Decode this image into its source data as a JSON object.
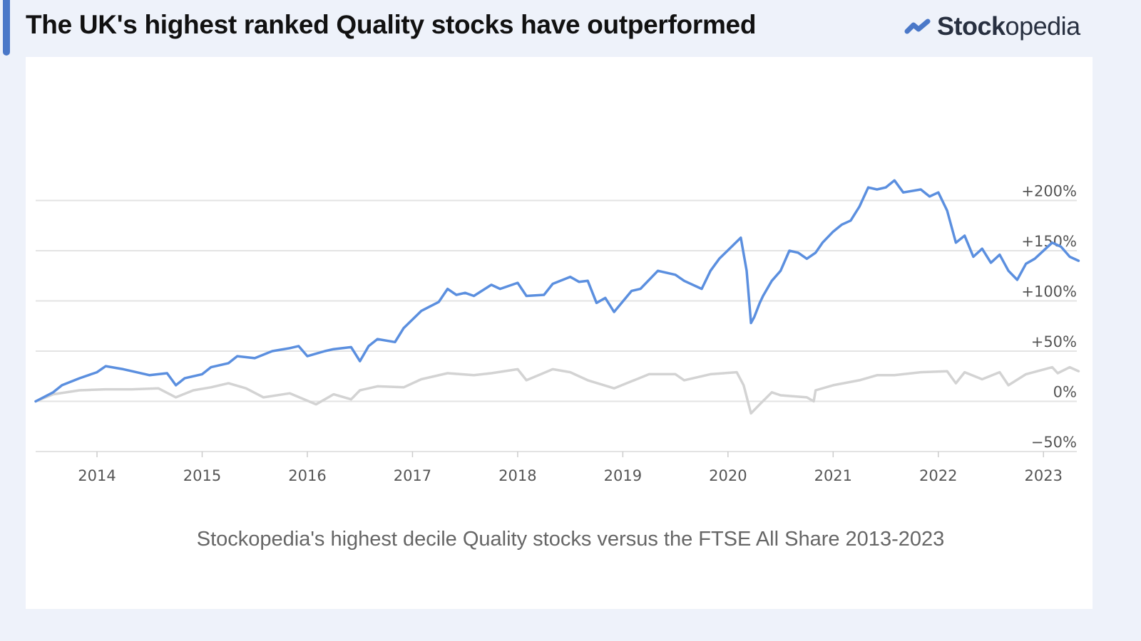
{
  "header": {
    "title": "The UK's highest ranked Quality stocks have outperformed",
    "logo": {
      "text_bold": "Stock",
      "text_light": "opedia",
      "icon": "trend-up-icon",
      "color": "#4a78c8"
    }
  },
  "chart_data": {
    "type": "line",
    "title": "",
    "caption": "Stockopedia's highest decile Quality stocks versus the FTSE All Share 2013-2023",
    "xlabel": "",
    "ylabel": "",
    "xlim": [
      "2013-06",
      "2023-05"
    ],
    "ylim": [
      -50,
      250
    ],
    "grid": true,
    "legend": "none",
    "y_ticks": [
      {
        "value": -50,
        "label": "−50%"
      },
      {
        "value": 0,
        "label": "0%"
      },
      {
        "value": 50,
        "label": "+50%"
      },
      {
        "value": 100,
        "label": "+100%"
      },
      {
        "value": 150,
        "label": "+150%"
      },
      {
        "value": 200,
        "label": "+200%"
      }
    ],
    "x_ticks": [
      "2014",
      "2015",
      "2016",
      "2017",
      "2018",
      "2019",
      "2020",
      "2021",
      "2022",
      "2023"
    ],
    "series": [
      {
        "color": "#5b8fdf",
        "points": [
          [
            "2013-06",
            0
          ],
          [
            "2013-08",
            9
          ],
          [
            "2013-09",
            16
          ],
          [
            "2013-11",
            23
          ],
          [
            "2014-01",
            29
          ],
          [
            "2014-02",
            35
          ],
          [
            "2014-04",
            32
          ],
          [
            "2014-05",
            30
          ],
          [
            "2014-07",
            26
          ],
          [
            "2014-09",
            28
          ],
          [
            "2014-10",
            16
          ],
          [
            "2014-11",
            23
          ],
          [
            "2015-01",
            27
          ],
          [
            "2015-02",
            34
          ],
          [
            "2015-04",
            38
          ],
          [
            "2015-05",
            45
          ],
          [
            "2015-07",
            43
          ],
          [
            "2015-09",
            50
          ],
          [
            "2015-11",
            53
          ],
          [
            "2015-12",
            55
          ],
          [
            "2016-01",
            45
          ],
          [
            "2016-03",
            50
          ],
          [
            "2016-04",
            52
          ],
          [
            "2016-06",
            54
          ],
          [
            "2016-07",
            40
          ],
          [
            "2016-08",
            55
          ],
          [
            "2016-09",
            62
          ],
          [
            "2016-11",
            59
          ],
          [
            "2016-12",
            73
          ],
          [
            "2017-02",
            90
          ],
          [
            "2017-04",
            99
          ],
          [
            "2017-05",
            112
          ],
          [
            "2017-06",
            106
          ],
          [
            "2017-07",
            108
          ],
          [
            "2017-08",
            105
          ],
          [
            "2017-10",
            116
          ],
          [
            "2017-11",
            112
          ],
          [
            "2018-01",
            118
          ],
          [
            "2018-02",
            105
          ],
          [
            "2018-04",
            106
          ],
          [
            "2018-05",
            117
          ],
          [
            "2018-07",
            124
          ],
          [
            "2018-08",
            119
          ],
          [
            "2018-09",
            120
          ],
          [
            "2018-10",
            98
          ],
          [
            "2018-11",
            103
          ],
          [
            "2018-12",
            89
          ],
          [
            "2019-02",
            110
          ],
          [
            "2019-03",
            112
          ],
          [
            "2019-05",
            130
          ],
          [
            "2019-07",
            126
          ],
          [
            "2019-08",
            120
          ],
          [
            "2019-10",
            112
          ],
          [
            "2019-11",
            130
          ],
          [
            "2019-12",
            142
          ],
          [
            "2020-02-15",
            163
          ],
          [
            "2020-03-05",
            130
          ],
          [
            "2020-03-20",
            78
          ],
          [
            "2020-04",
            84
          ],
          [
            "2020-04-20",
            98
          ],
          [
            "2020-05",
            105
          ],
          [
            "2020-06",
            120
          ],
          [
            "2020-07",
            130
          ],
          [
            "2020-08",
            150
          ],
          [
            "2020-09",
            148
          ],
          [
            "2020-10",
            142
          ],
          [
            "2020-11",
            148
          ],
          [
            "2020-11-25",
            158
          ],
          [
            "2021-01",
            169
          ],
          [
            "2021-02",
            176
          ],
          [
            "2021-03",
            180
          ],
          [
            "2021-04",
            194
          ],
          [
            "2021-05",
            213
          ],
          [
            "2021-06",
            211
          ],
          [
            "2021-07",
            213
          ],
          [
            "2021-08",
            220
          ],
          [
            "2021-09",
            208
          ],
          [
            "2021-11",
            211
          ],
          [
            "2021-12",
            204
          ],
          [
            "2022-01",
            208
          ],
          [
            "2022-02",
            190
          ],
          [
            "2022-03",
            158
          ],
          [
            "2022-04",
            165
          ],
          [
            "2022-05",
            144
          ],
          [
            "2022-06",
            152
          ],
          [
            "2022-07",
            138
          ],
          [
            "2022-08",
            146
          ],
          [
            "2022-09",
            130
          ],
          [
            "2022-10",
            121
          ],
          [
            "2022-11",
            137
          ],
          [
            "2022-12",
            142
          ],
          [
            "2023-02",
            158
          ],
          [
            "2023-03",
            154
          ],
          [
            "2023-04",
            144
          ],
          [
            "2023-05",
            140
          ]
        ]
      },
      {
        "color": "#d3d3d3",
        "points": [
          [
            "2013-06",
            0
          ],
          [
            "2013-08",
            7
          ],
          [
            "2013-11",
            11
          ],
          [
            "2014-02",
            12
          ],
          [
            "2014-05",
            12
          ],
          [
            "2014-08",
            13
          ],
          [
            "2014-10",
            4
          ],
          [
            "2014-12",
            11
          ],
          [
            "2015-02",
            14
          ],
          [
            "2015-04",
            18
          ],
          [
            "2015-06",
            13
          ],
          [
            "2015-08",
            4
          ],
          [
            "2015-11",
            8
          ],
          [
            "2016-02",
            -3
          ],
          [
            "2016-04",
            7
          ],
          [
            "2016-06",
            2
          ],
          [
            "2016-07",
            11
          ],
          [
            "2016-09",
            15
          ],
          [
            "2016-12",
            14
          ],
          [
            "2017-02",
            22
          ],
          [
            "2017-05",
            28
          ],
          [
            "2017-08",
            26
          ],
          [
            "2017-10",
            28
          ],
          [
            "2018-01",
            32
          ],
          [
            "2018-02",
            21
          ],
          [
            "2018-05",
            32
          ],
          [
            "2018-07",
            29
          ],
          [
            "2018-09",
            21
          ],
          [
            "2018-12",
            13
          ],
          [
            "2019-02",
            20
          ],
          [
            "2019-04",
            27
          ],
          [
            "2019-07",
            27
          ],
          [
            "2019-08",
            21
          ],
          [
            "2019-11",
            27
          ],
          [
            "2020-02",
            29
          ],
          [
            "2020-02-25",
            16
          ],
          [
            "2020-03-20",
            -12
          ],
          [
            "2020-04-20",
            -3
          ],
          [
            "2020-06",
            9
          ],
          [
            "2020-07",
            6
          ],
          [
            "2020-10",
            4
          ],
          [
            "2020-10-25",
            0
          ],
          [
            "2020-11",
            11
          ],
          [
            "2021-01",
            16
          ],
          [
            "2021-04",
            21
          ],
          [
            "2021-06",
            26
          ],
          [
            "2021-08",
            26
          ],
          [
            "2021-11",
            29
          ],
          [
            "2022-02",
            30
          ],
          [
            "2022-03",
            18
          ],
          [
            "2022-04",
            29
          ],
          [
            "2022-06",
            22
          ],
          [
            "2022-08",
            29
          ],
          [
            "2022-09",
            16
          ],
          [
            "2022-11",
            27
          ],
          [
            "2023-02",
            34
          ],
          [
            "2023-02-20",
            28
          ],
          [
            "2023-04",
            34
          ],
          [
            "2023-05",
            30
          ]
        ]
      }
    ]
  }
}
